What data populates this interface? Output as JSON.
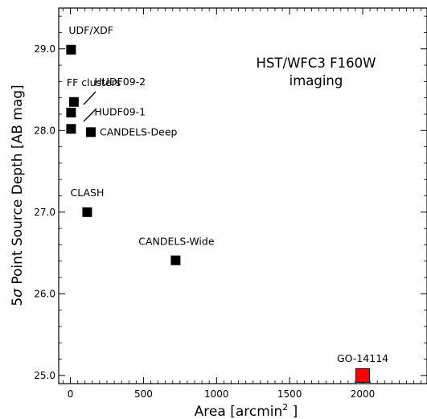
{
  "chart_data": {
    "type": "scatter",
    "xlabel_main": "Area [arcmin",
    "xlabel_sup": "2",
    "xlabel_end": " ]",
    "ylabel_pre": "5",
    "ylabel_sigma": "σ",
    "ylabel_post": " Point Source Depth [AB mag]",
    "xlim": [
      -80,
      2440
    ],
    "ylim": [
      24.9,
      29.5
    ],
    "xticks": [
      0,
      500,
      1000,
      1500,
      2000
    ],
    "xtick_labels": [
      "0",
      "500",
      "1000",
      "1500",
      "2000"
    ],
    "yticks": [
      25.0,
      26.0,
      27.0,
      28.0,
      29.0
    ],
    "ytick_labels": [
      "25.0",
      "26.0",
      "27.0",
      "28.0",
      "29.0"
    ],
    "annotation_line1": "HST/WFC3 F160W",
    "annotation_line2": "imaging",
    "points": [
      {
        "label": "UDF/XDF",
        "x": 4.7,
        "y": 28.99,
        "color": "#000000",
        "size": "small"
      },
      {
        "label": "FF clusters",
        "x": 24,
        "y": 28.35,
        "color": "#000000",
        "size": "small"
      },
      {
        "label": "HUDF09-2",
        "x": 4.7,
        "y": 28.22,
        "color": "#000000",
        "size": "small"
      },
      {
        "label": "HUDF09-1",
        "x": 4.7,
        "y": 28.02,
        "color": "#000000",
        "size": "small"
      },
      {
        "label": "CANDELS-Deep",
        "x": 140,
        "y": 27.98,
        "color": "#000000",
        "size": "small"
      },
      {
        "label": "CLASH",
        "x": 115,
        "y": 27.0,
        "color": "#000000",
        "size": "small"
      },
      {
        "label": "CANDELS-Wide",
        "x": 720,
        "y": 26.41,
        "color": "#000000",
        "size": "small"
      },
      {
        "label": "GO-14114",
        "x": 2000,
        "y": 25.0,
        "color": "#ff0000",
        "size": "large"
      }
    ]
  }
}
